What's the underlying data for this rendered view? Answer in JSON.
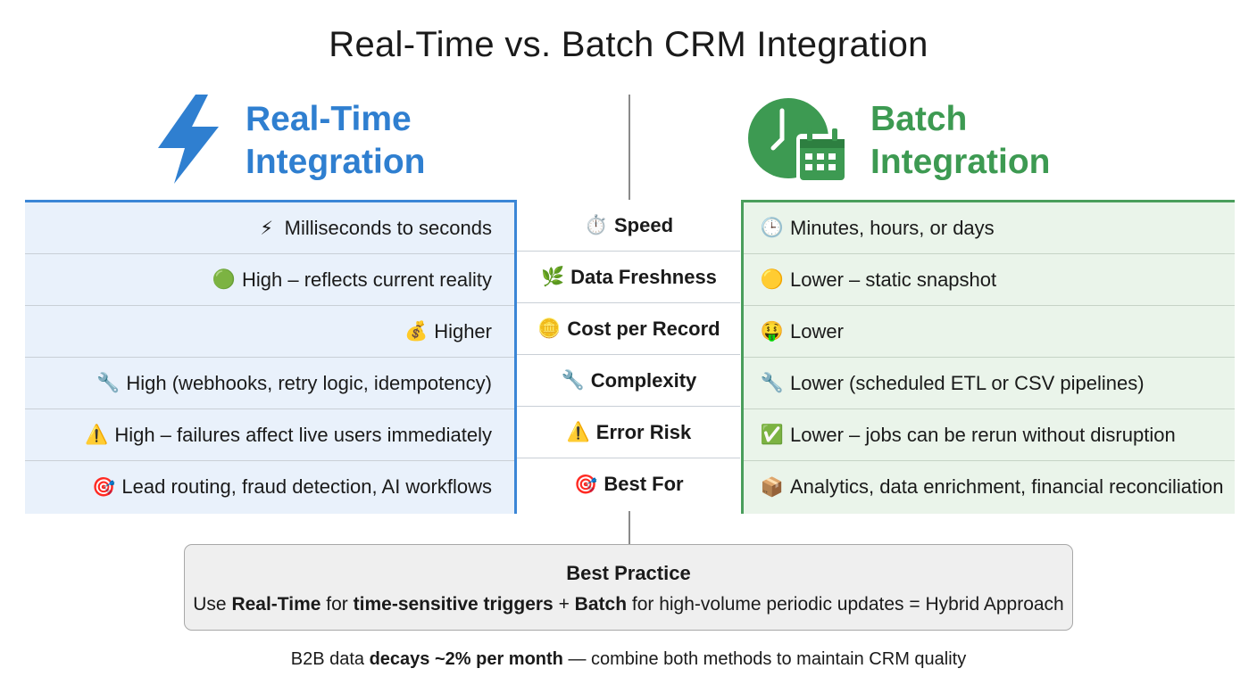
{
  "title": "Real-Time vs. Batch CRM Integration",
  "realtime": {
    "heading_line1": "Real-Time",
    "heading_line2": "Integration",
    "icon": "lightning-bolt-icon",
    "color": "#2f7fd0"
  },
  "batch": {
    "heading_line1": "Batch",
    "heading_line2": "Integration",
    "icon": "clock-calendar-icon",
    "color": "#3d9a52"
  },
  "rows": [
    {
      "criterion_icon": "⏱️",
      "criterion": "Speed",
      "realtime_icon": "⚡",
      "realtime": "Milliseconds to seconds",
      "batch_icon": "🕒",
      "batch": "Minutes, hours, or days"
    },
    {
      "criterion_icon": "🌿",
      "criterion": "Data Freshness",
      "realtime_icon": "🟢",
      "realtime": "High – reflects current reality",
      "batch_icon": "🟡",
      "batch": "Lower – static snapshot"
    },
    {
      "criterion_icon": "🪙",
      "criterion": "Cost per Record",
      "realtime_icon": "💰",
      "realtime": "Higher",
      "batch_icon": "🤑",
      "batch": "Lower"
    },
    {
      "criterion_icon": "🔧",
      "criterion": "Complexity",
      "realtime_icon": "🔧",
      "realtime": "High (webhooks, retry logic, idempotency)",
      "batch_icon": "🔧",
      "batch": "Lower (scheduled ETL or CSV pipelines)"
    },
    {
      "criterion_icon": "⚠️",
      "criterion": "Error Risk",
      "realtime_icon": "⚠️",
      "realtime": "High – failures affect live users immediately",
      "batch_icon": "✅",
      "batch": "Lower – jobs can be rerun without disruption"
    },
    {
      "criterion_icon": "🎯",
      "criterion": "Best For",
      "realtime_icon": "🎯",
      "realtime": "Lead routing, fraud detection, AI workflows",
      "batch_icon": "📦",
      "batch": "Analytics, data enrichment, financial reconciliation"
    }
  ],
  "best_practice": {
    "title": "Best Practice",
    "t1": "Use ",
    "t2": "Real-Time",
    "t3": " for ",
    "t4": "time-sensitive triggers",
    "t5": " + ",
    "t6": "Batch",
    "t7": " for high-volume periodic updates = Hybrid Approach"
  },
  "footer": {
    "f1": "B2B data ",
    "f2": "decays ~2% per month",
    "f3": " — combine both methods to maintain CRM quality"
  }
}
